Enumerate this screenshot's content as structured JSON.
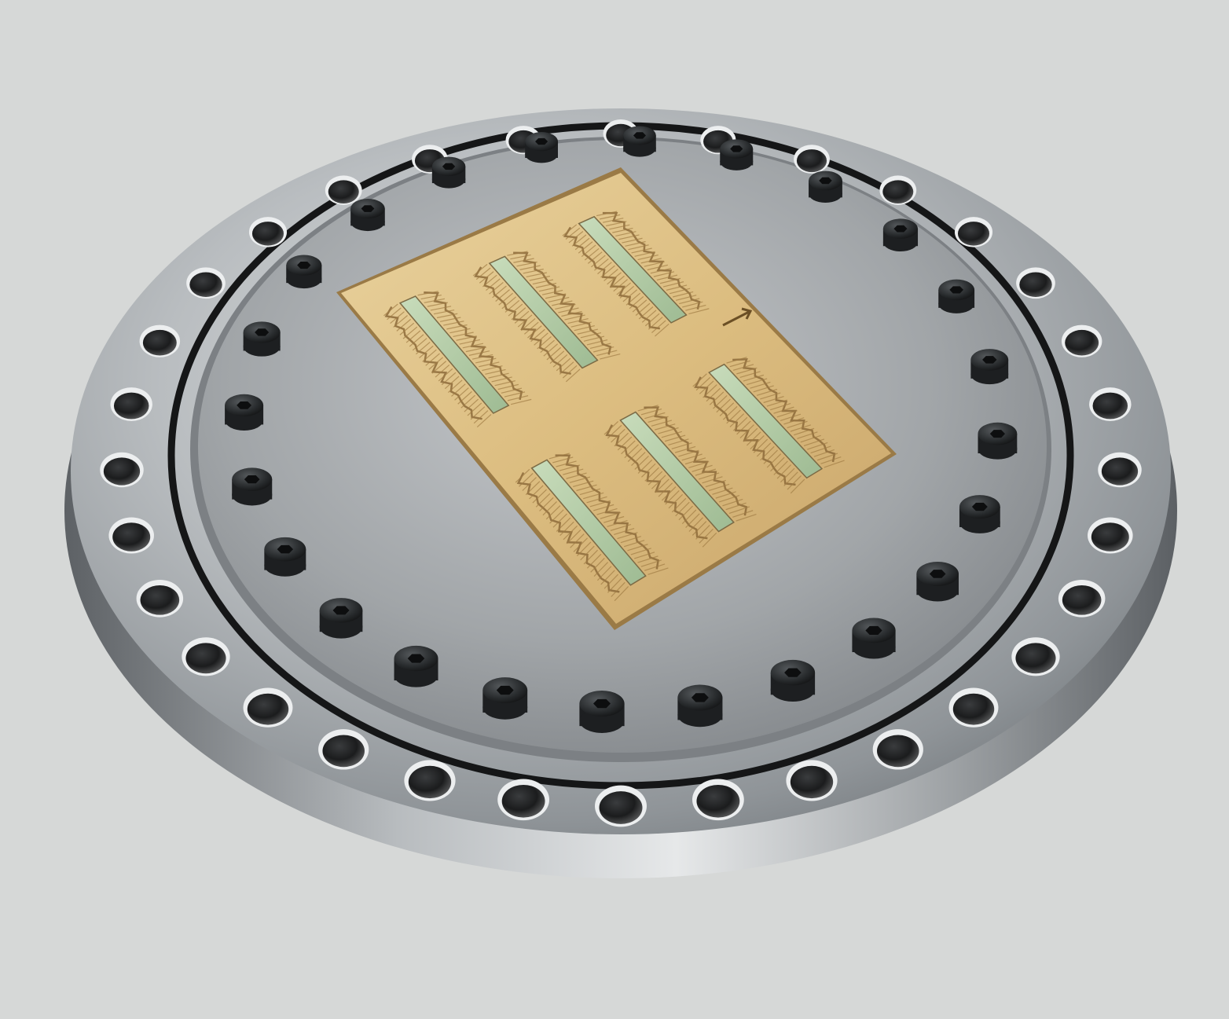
{
  "colors": {
    "background": "#d6d8d7",
    "steel_light": "#c9cccd",
    "steel_mid": "#a7abae",
    "steel_dark": "#6f7377",
    "oring": "#151617",
    "bolt": "#26292b",
    "gold": "#e2c78f",
    "gold_dark": "#b89256",
    "trace": "#8c6a3a",
    "slot_green": "#bcd3ad"
  },
  "objects": {
    "flange": "circular-steel-flange",
    "through_holes": "through-hole",
    "o_ring": "o-ring-seal",
    "bolts": "hex-socket-bolt",
    "circuit_board": "gold-pcb",
    "slots": "translucent-slot",
    "serpentine_traces": "serpentine-trace",
    "direction_marker": "arrow-icon"
  },
  "counts": {
    "through_holes": 32,
    "bolts": 24,
    "slots": 6
  }
}
